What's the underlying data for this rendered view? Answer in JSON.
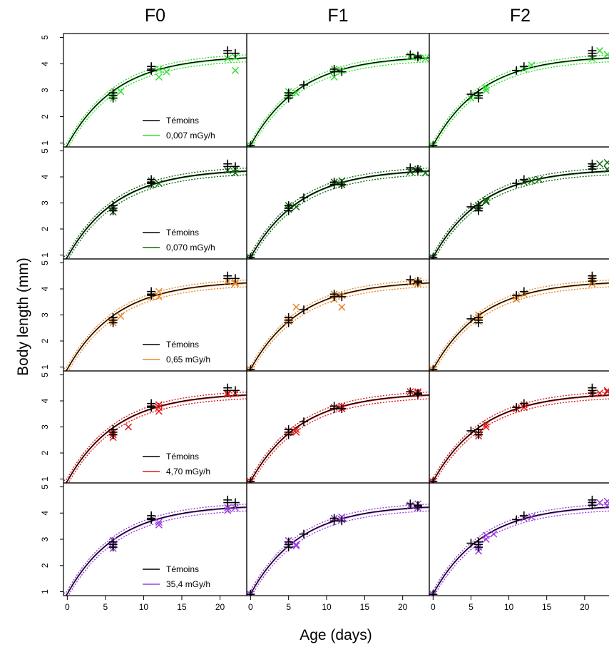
{
  "chart_data": {
    "type": "scatter",
    "columns": [
      "F0",
      "F1",
      "F2"
    ],
    "xlabel": "Age (days)",
    "ylabel": "Body length (mm)",
    "x_ticks": [
      0,
      5,
      10,
      15,
      20
    ],
    "y_ticks": [
      1,
      2,
      3,
      4,
      5
    ],
    "xlim": [
      -0.5,
      23.5
    ],
    "ylim": [
      0.85,
      5.15
    ],
    "control_label": "Témoins",
    "control_color": "#000000",
    "control_marker": "plus",
    "exposed_marker": "cross",
    "rows": [
      {
        "label": "0,007 mGy/h",
        "color": "#33dd33"
      },
      {
        "label": "0,070 mGy/h",
        "color": "#106a10"
      },
      {
        "label": "0,65 mGy/h",
        "color": "#e8892a"
      },
      {
        "label": "4,70 mGy/h",
        "color": "#e01818"
      },
      {
        "label": "35,4 mGy/h",
        "color": "#9a3ee0"
      }
    ],
    "control_points": [
      [
        [
          6,
          2.9
        ],
        [
          6,
          2.8
        ],
        [
          6,
          2.7
        ],
        [
          11,
          3.9
        ],
        [
          11,
          3.8
        ],
        [
          11,
          3.75
        ],
        [
          21,
          4.5
        ],
        [
          21,
          4.4
        ],
        [
          22,
          4.4
        ]
      ],
      [
        [
          0,
          0.9
        ],
        [
          5,
          2.9
        ],
        [
          5,
          2.8
        ],
        [
          5,
          2.7
        ],
        [
          7,
          3.2
        ],
        [
          11,
          3.8
        ],
        [
          11,
          3.7
        ],
        [
          12,
          3.7
        ],
        [
          21,
          4.35
        ],
        [
          22,
          4.3
        ],
        [
          22,
          4.25
        ]
      ],
      [
        [
          0,
          0.9
        ],
        [
          5,
          2.85
        ],
        [
          6,
          2.9
        ],
        [
          6,
          2.8
        ],
        [
          6,
          2.7
        ],
        [
          11,
          3.75
        ],
        [
          12,
          3.9
        ],
        [
          21,
          4.5
        ],
        [
          21,
          4.4
        ],
        [
          21,
          4.3
        ]
      ]
    ],
    "exposed_points": [
      [
        [
          [
            6,
            2.9
          ],
          [
            6,
            2.7
          ],
          [
            7,
            2.95
          ],
          [
            12,
            3.5
          ],
          [
            12,
            3.8
          ],
          [
            13,
            3.7
          ],
          [
            21,
            4.2
          ],
          [
            22,
            4.25
          ],
          [
            22,
            3.75
          ]
        ],
        [
          [
            0,
            0.9
          ],
          [
            5,
            2.95
          ],
          [
            5,
            2.8
          ],
          [
            6,
            2.9
          ],
          [
            11,
            3.5
          ],
          [
            11,
            3.8
          ],
          [
            12,
            3.75
          ],
          [
            21,
            4.3
          ],
          [
            22,
            4.25
          ],
          [
            23,
            4.2
          ]
        ],
        [
          [
            0,
            0.9
          ],
          [
            5,
            2.7
          ],
          [
            6,
            2.8
          ],
          [
            7,
            3.0
          ],
          [
            7,
            3.1
          ],
          [
            12,
            3.8
          ],
          [
            13,
            3.95
          ],
          [
            21,
            4.2
          ],
          [
            22,
            4.5
          ],
          [
            23,
            4.35
          ]
        ]
      ],
      [
        [
          [
            6,
            2.8
          ],
          [
            6,
            2.65
          ],
          [
            11,
            3.7
          ],
          [
            11,
            3.85
          ],
          [
            12,
            3.75
          ],
          [
            21,
            4.25
          ],
          [
            22,
            4.3
          ],
          [
            22,
            4.15
          ]
        ],
        [
          [
            0,
            0.9
          ],
          [
            5,
            2.9
          ],
          [
            5,
            2.75
          ],
          [
            6,
            2.85
          ],
          [
            11,
            3.8
          ],
          [
            12,
            3.7
          ],
          [
            12,
            3.85
          ],
          [
            21,
            4.2
          ],
          [
            22,
            4.3
          ],
          [
            23,
            4.15
          ]
        ],
        [
          [
            0,
            0.9
          ],
          [
            6,
            2.8
          ],
          [
            6,
            2.9
          ],
          [
            7,
            3.05
          ],
          [
            7,
            3.1
          ],
          [
            12,
            3.8
          ],
          [
            13,
            3.85
          ],
          [
            14,
            3.9
          ],
          [
            21,
            4.4
          ],
          [
            22,
            4.5
          ],
          [
            23,
            4.55
          ],
          [
            23,
            4.3
          ]
        ]
      ],
      [
        [
          [
            6,
            2.8
          ],
          [
            6,
            2.7
          ],
          [
            7,
            2.95
          ],
          [
            11,
            3.7
          ],
          [
            12,
            3.9
          ],
          [
            12,
            3.7
          ],
          [
            21,
            4.3
          ],
          [
            22,
            4.25
          ],
          [
            22,
            4.2
          ]
        ],
        [
          [
            0,
            0.9
          ],
          [
            5,
            2.85
          ],
          [
            5,
            2.75
          ],
          [
            6,
            3.3
          ],
          [
            11,
            3.8
          ],
          [
            11,
            3.6
          ],
          [
            12,
            3.3
          ],
          [
            12,
            3.75
          ],
          [
            21,
            4.25
          ],
          [
            22,
            4.3
          ],
          [
            22,
            4.2
          ]
        ],
        [
          [
            0,
            0.9
          ],
          [
            6,
            2.75
          ],
          [
            6,
            2.9
          ],
          [
            6,
            3.0
          ],
          [
            11,
            3.7
          ],
          [
            11,
            3.6
          ],
          [
            12,
            3.8
          ],
          [
            21,
            4.2
          ],
          [
            21,
            4.3
          ],
          [
            21,
            4.4
          ]
        ]
      ],
      [
        [
          [
            6,
            2.8
          ],
          [
            6,
            2.6
          ],
          [
            6,
            2.7
          ],
          [
            8,
            3.0
          ],
          [
            12,
            3.75
          ],
          [
            12,
            3.6
          ],
          [
            12,
            3.85
          ],
          [
            21,
            4.25
          ],
          [
            21,
            4.3
          ],
          [
            22,
            4.3
          ]
        ],
        [
          [
            0,
            0.9
          ],
          [
            5,
            2.85
          ],
          [
            6,
            2.9
          ],
          [
            6,
            2.8
          ],
          [
            11,
            3.75
          ],
          [
            12,
            3.7
          ],
          [
            12,
            3.8
          ],
          [
            21,
            4.35
          ],
          [
            22,
            4.3
          ],
          [
            22,
            4.35
          ]
        ],
        [
          [
            0,
            0.9
          ],
          [
            6,
            2.75
          ],
          [
            6,
            2.65
          ],
          [
            7,
            3.0
          ],
          [
            7,
            3.1
          ],
          [
            11,
            3.7
          ],
          [
            12,
            3.75
          ],
          [
            12,
            3.85
          ],
          [
            21,
            4.3
          ],
          [
            22,
            4.3
          ],
          [
            23,
            4.4
          ],
          [
            23,
            4.35
          ]
        ]
      ],
      [
        [
          [
            6,
            2.95
          ],
          [
            6,
            2.75
          ],
          [
            6,
            2.65
          ],
          [
            12,
            3.55
          ],
          [
            12,
            3.65
          ],
          [
            21,
            4.2
          ],
          [
            21,
            4.1
          ],
          [
            22,
            4.2
          ]
        ],
        [
          [
            0,
            0.9
          ],
          [
            5,
            2.95
          ],
          [
            5,
            2.75
          ],
          [
            6,
            2.8
          ],
          [
            6,
            2.75
          ],
          [
            11,
            3.8
          ],
          [
            12,
            3.75
          ],
          [
            12,
            3.85
          ],
          [
            21,
            4.3
          ],
          [
            22,
            4.2
          ],
          [
            22,
            4.35
          ]
        ],
        [
          [
            0,
            0.9
          ],
          [
            6,
            2.55
          ],
          [
            6,
            2.7
          ],
          [
            7,
            3.0
          ],
          [
            7,
            3.15
          ],
          [
            8,
            3.2
          ],
          [
            12,
            3.8
          ],
          [
            13,
            3.85
          ],
          [
            21,
            4.35
          ],
          [
            22,
            4.4
          ],
          [
            23,
            4.3
          ],
          [
            23,
            4.45
          ]
        ]
      ]
    ]
  }
}
